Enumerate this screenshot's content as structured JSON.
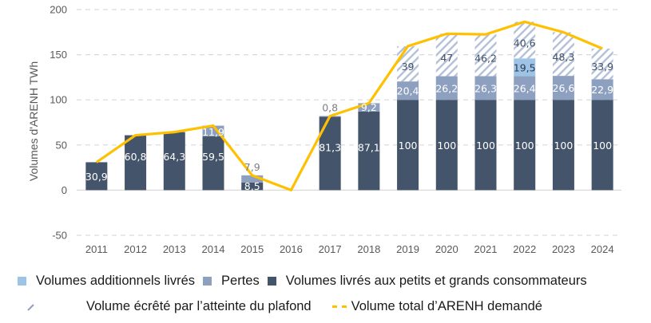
{
  "chart_data": {
    "type": "bar",
    "title": "",
    "xlabel": "",
    "ylabel": "Volumes d'ARENH TWh",
    "ylim": [
      -50,
      200
    ],
    "yticks": [
      -50,
      0,
      50,
      100,
      150,
      200
    ],
    "ytick_labels": [
      "-50",
      "0",
      "50",
      "100",
      "150",
      "200"
    ],
    "grid": true,
    "stacked": true,
    "categories": [
      "2011",
      "2012",
      "2013",
      "2014",
      "2015",
      "2016",
      "2017",
      "2018",
      "2019",
      "2020",
      "2021",
      "2022",
      "2023",
      "2024"
    ],
    "series": [
      {
        "name": "Volumes livrés aux petits et grands consommateurs",
        "kind": "bar",
        "color": "#44546A",
        "label_color": "#FFFFFF",
        "values": [
          30.9,
          60.8,
          64.3,
          59.5,
          8.5,
          0,
          81.3,
          87.1,
          100,
          100,
          100,
          100,
          100,
          100
        ],
        "labels": [
          "30,9",
          "60,8",
          "64,3",
          "59,5",
          "8,5",
          "",
          "81,3",
          "87,1",
          "100",
          "100",
          "100",
          "100",
          "100",
          "100"
        ]
      },
      {
        "name": "Pertes",
        "kind": "bar",
        "color": "#8EA0C0",
        "label_color": "#FFFFFF",
        "values": [
          0,
          0,
          0,
          11.9,
          7.9,
          0,
          0.8,
          9.2,
          20.4,
          26.2,
          26.3,
          26.4,
          26.6,
          22.9
        ],
        "labels": [
          "",
          "",
          "",
          "11,9",
          "7,9",
          "",
          "0,8",
          "9,2",
          "20,4",
          "26,2",
          "26,3",
          "26,4",
          "26,6",
          "22,9"
        ]
      },
      {
        "name": "Volumes additionnels livrés",
        "kind": "bar",
        "color": "#9DC3E6",
        "label_color": "#2F3B52",
        "values": [
          0,
          0,
          0,
          0,
          0,
          0,
          0,
          0,
          0,
          0,
          0,
          19.5,
          0,
          0
        ],
        "labels": [
          "",
          "",
          "",
          "",
          "",
          "",
          "",
          "",
          "",
          "",
          "",
          "19,5",
          "",
          ""
        ]
      },
      {
        "name": "Volume écrêté par l’atteinte du plafond",
        "kind": "hatched-bar",
        "color": "#B4C0D8",
        "label_color": "#44546A",
        "values": [
          0,
          0,
          0,
          0,
          0,
          0,
          0,
          0,
          39,
          47,
          46.2,
          40.6,
          48.3,
          33.9
        ],
        "labels": [
          "",
          "",
          "",
          "",
          "",
          "",
          "",
          "",
          "39",
          "47",
          "46,2",
          "40,6",
          "48,3",
          "33,9"
        ]
      },
      {
        "name": "Volume total d’ARENH demandé",
        "kind": "line",
        "color": "#FFC000",
        "values": [
          30.9,
          60.8,
          64.3,
          71.4,
          16.4,
          0,
          82.1,
          96.3,
          159.4,
          173.2,
          172.5,
          186.5,
          174.9,
          156.8
        ]
      }
    ],
    "outside_labels": {
      "note": "Pertes labels for 2015 and 2017 are drawn above the bar in grey",
      "years": [
        "2015",
        "2017"
      ],
      "color": "#7F7F7F"
    },
    "legend": {
      "placement": "bottom",
      "rows": [
        [
          {
            "label": "Volumes additionnels livrés",
            "swatch": "solid",
            "color": "#9DC3E6"
          },
          {
            "label": "Pertes",
            "swatch": "solid",
            "color": "#8EA0C0"
          },
          {
            "label": "Volumes livrés aux petits et grands consommateurs",
            "swatch": "solid",
            "color": "#44546A"
          }
        ],
        [
          {
            "label": "Volume écrêté par l’atteinte du plafond",
            "swatch": "hatch",
            "color": "#B4C0D8"
          },
          {
            "label": "Volume total d’ARENH demandé",
            "swatch": "dashed-line",
            "color": "#FFC000"
          }
        ]
      ]
    }
  }
}
